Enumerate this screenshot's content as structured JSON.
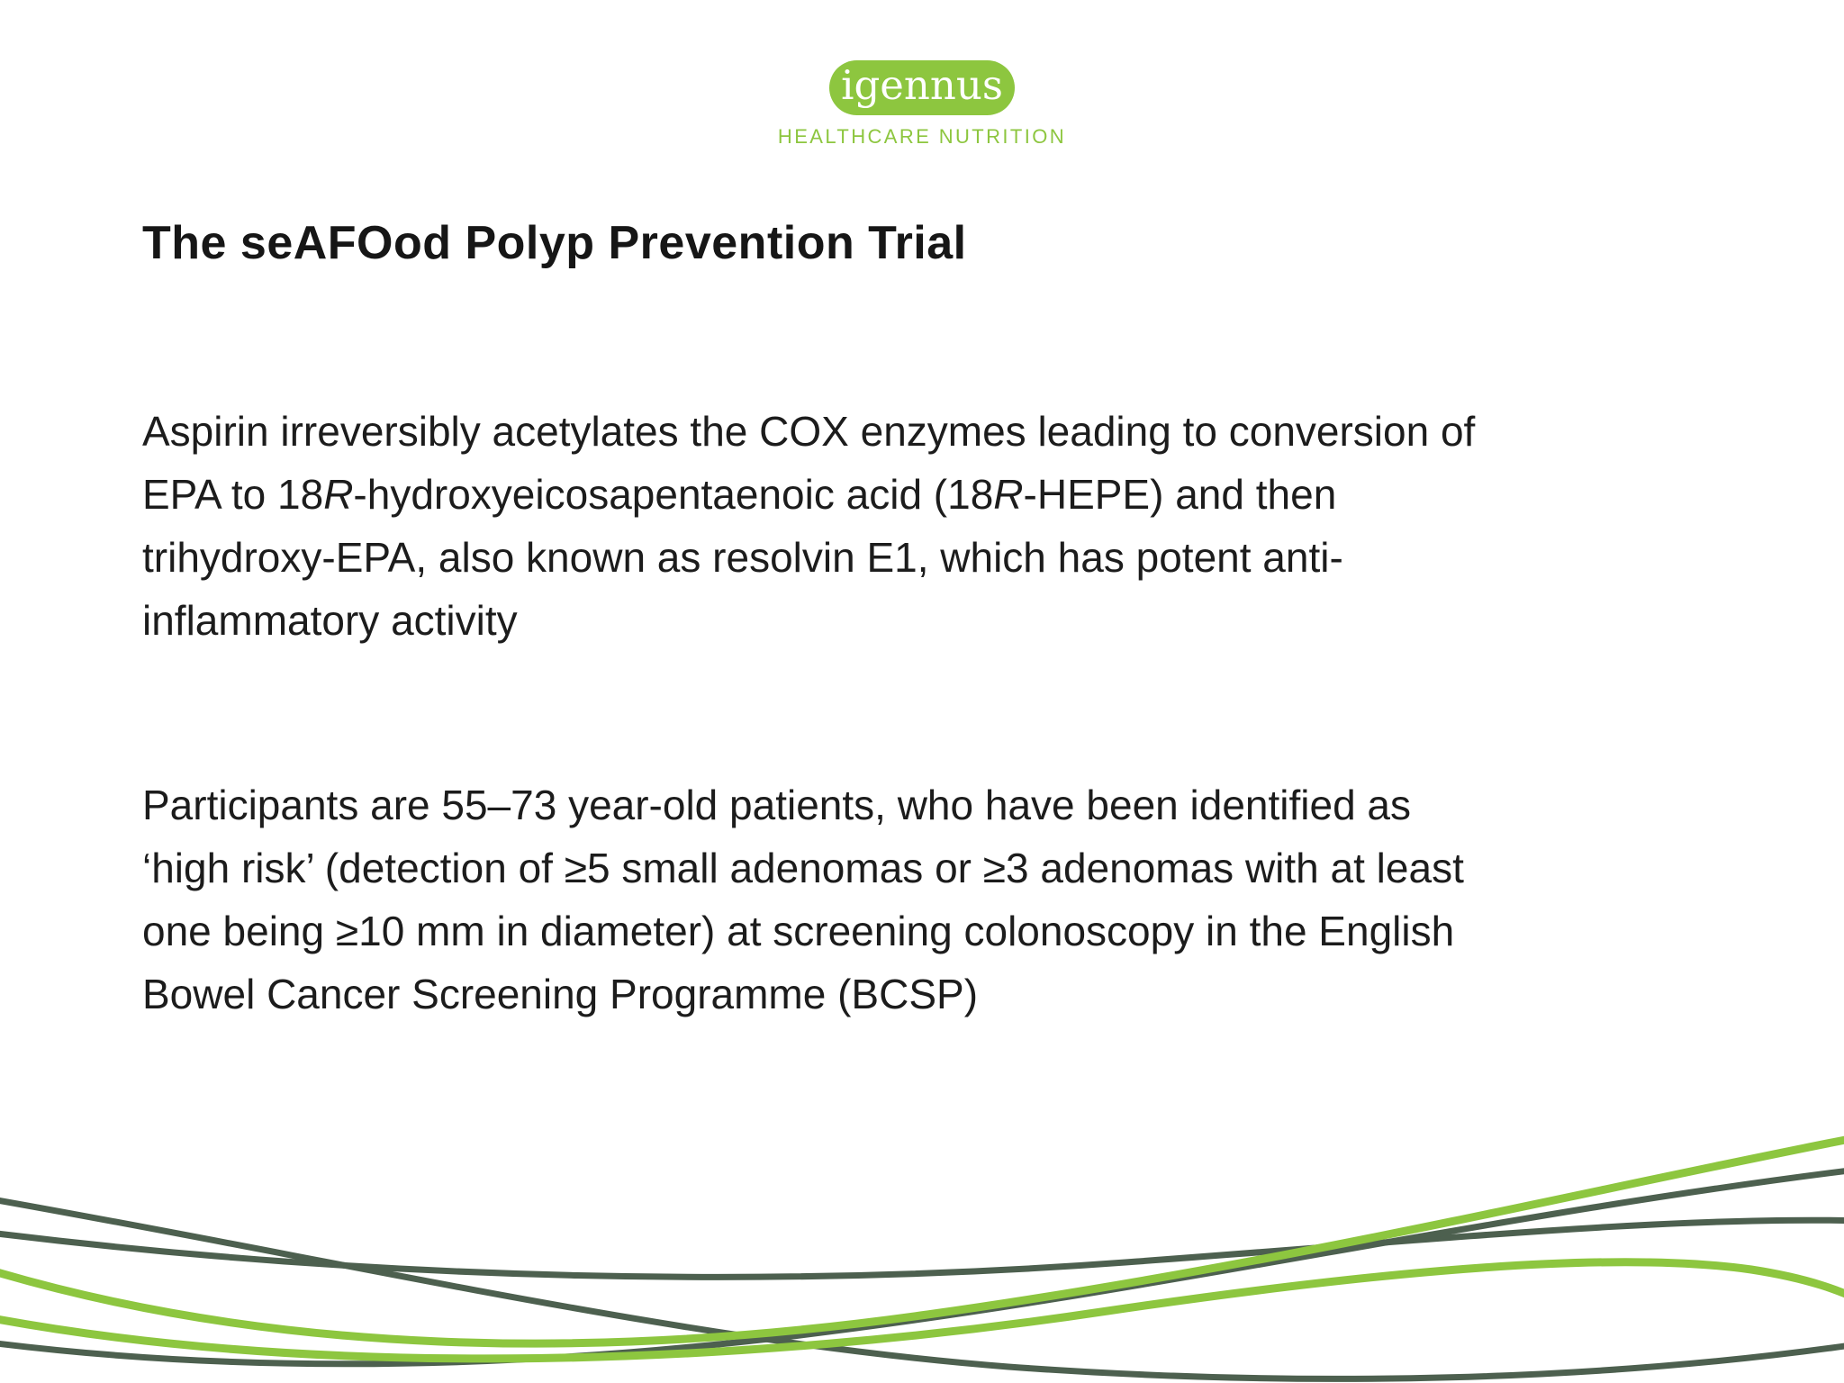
{
  "slide": {
    "logo": {
      "brand": "igennus",
      "subtitle": "HEALTHCARE NUTRITION"
    },
    "title": "The seAFOod Polyp Prevention Trial",
    "paragraphs": [
      {
        "lines": [
          [
            {
              "t": "Aspirin irreversibly acetylates the COX enzymes leading to conversion of"
            }
          ],
          [
            {
              "t": "EPA to 18"
            },
            {
              "t": "R",
              "i": true
            },
            {
              "t": "-hydroxyeicosapentaenoic acid (18"
            },
            {
              "t": "R",
              "i": true
            },
            {
              "t": "-HEPE) and then"
            }
          ],
          [
            {
              "t": "trihydroxy-EPA, also known as resolvin E1, which has potent anti-"
            }
          ],
          [
            {
              "t": "inflammatory activity"
            }
          ]
        ]
      },
      {
        "lines": [
          [
            {
              "t": "Participants are 55–73 year-old patients, who have been identified as"
            }
          ],
          [
            {
              "t": "‘high risk’ (detection of ≥5 small adenomas or ≥3 adenomas with at least"
            }
          ],
          [
            {
              "t": "one being ≥10 mm in diameter) at screening colonoscopy in the English"
            }
          ],
          [
            {
              "t": "Bowel Cancer Screening Programme (BCSP)"
            }
          ]
        ]
      }
    ],
    "colors": {
      "brand_green": "#8dc63f",
      "wave_light_green": "#8dc63f",
      "wave_dark_green": "#4d604f",
      "body_text": "#1c1c1c",
      "logo_text": "#ffffff"
    }
  }
}
